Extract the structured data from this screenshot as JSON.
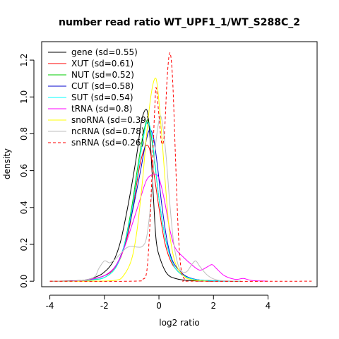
{
  "chart_data": {
    "type": "line",
    "title": "number read ratio WT_UPF1_1/WT_S288C_2",
    "xlabel": "log2 ratio",
    "ylabel": "density",
    "xlim": [
      -4.3,
      5.8
    ],
    "ylim": [
      -0.03,
      1.3
    ],
    "xticks": [
      -4,
      -2,
      0,
      2,
      4
    ],
    "xtick_labels": [
      "-4",
      "-2",
      "0",
      "2",
      "4"
    ],
    "yticks": [
      0,
      0.2,
      0.4,
      0.6,
      0.8,
      1.0,
      1.2
    ],
    "ytick_labels": [
      "0.0",
      "0.2",
      "0.4",
      "0.6",
      "0.8",
      "1.0",
      "1.2"
    ],
    "grid": false,
    "legend_position": "top-left",
    "series": [
      {
        "name": "gene (sd=0.55)",
        "color": "#000000",
        "dash": "solid",
        "points": [
          [
            -4,
            0
          ],
          [
            -3,
            0.003
          ],
          [
            -2.6,
            0.01
          ],
          [
            -2.2,
            0.03
          ],
          [
            -2.0,
            0.05
          ],
          [
            -1.8,
            0.08
          ],
          [
            -1.6,
            0.13
          ],
          [
            -1.4,
            0.22
          ],
          [
            -1.2,
            0.36
          ],
          [
            -1.0,
            0.52
          ],
          [
            -0.8,
            0.7
          ],
          [
            -0.65,
            0.86
          ],
          [
            -0.5,
            0.93
          ],
          [
            -0.4,
            0.9
          ],
          [
            -0.3,
            0.72
          ],
          [
            -0.2,
            0.45
          ],
          [
            -0.1,
            0.22
          ],
          [
            0.05,
            0.12
          ],
          [
            0.3,
            0.04
          ],
          [
            0.6,
            0.015
          ],
          [
            1.0,
            0.005
          ],
          [
            1.5,
            0.001
          ],
          [
            3,
            0
          ]
        ]
      },
      {
        "name": "XUT (sd=0.61)",
        "color": "#ff0000",
        "dash": "solid",
        "points": [
          [
            -4,
            0
          ],
          [
            -3,
            0.002
          ],
          [
            -2.5,
            0.01
          ],
          [
            -2.0,
            0.03
          ],
          [
            -1.7,
            0.06
          ],
          [
            -1.4,
            0.13
          ],
          [
            -1.1,
            0.28
          ],
          [
            -0.9,
            0.45
          ],
          [
            -0.7,
            0.63
          ],
          [
            -0.5,
            0.73
          ],
          [
            -0.35,
            0.72
          ],
          [
            -0.2,
            0.6
          ],
          [
            0,
            0.4
          ],
          [
            0.2,
            0.22
          ],
          [
            0.4,
            0.12
          ],
          [
            0.6,
            0.07
          ],
          [
            0.9,
            0.03
          ],
          [
            1.3,
            0.01
          ],
          [
            2,
            0.003
          ],
          [
            3,
            0
          ]
        ]
      },
      {
        "name": "NUT (sd=0.52)",
        "color": "#00cd00",
        "dash": "solid",
        "points": [
          [
            -4,
            0
          ],
          [
            -3,
            0.001
          ],
          [
            -2.4,
            0.008
          ],
          [
            -2.0,
            0.02
          ],
          [
            -1.6,
            0.07
          ],
          [
            -1.3,
            0.18
          ],
          [
            -1.0,
            0.4
          ],
          [
            -0.8,
            0.6
          ],
          [
            -0.6,
            0.78
          ],
          [
            -0.45,
            0.87
          ],
          [
            -0.35,
            0.85
          ],
          [
            -0.2,
            0.7
          ],
          [
            0,
            0.45
          ],
          [
            0.2,
            0.26
          ],
          [
            0.4,
            0.14
          ],
          [
            0.6,
            0.07
          ],
          [
            0.9,
            0.03
          ],
          [
            1.3,
            0.01
          ],
          [
            2,
            0.002
          ],
          [
            3,
            0
          ]
        ]
      },
      {
        "name": "CUT (sd=0.58)",
        "color": "#0000cd",
        "dash": "solid",
        "points": [
          [
            -4,
            0
          ],
          [
            -3,
            0.002
          ],
          [
            -2.5,
            0.01
          ],
          [
            -2.0,
            0.03
          ],
          [
            -1.6,
            0.08
          ],
          [
            -1.3,
            0.18
          ],
          [
            -1.0,
            0.36
          ],
          [
            -0.7,
            0.58
          ],
          [
            -0.5,
            0.74
          ],
          [
            -0.35,
            0.82
          ],
          [
            -0.2,
            0.78
          ],
          [
            -0.05,
            0.62
          ],
          [
            0.1,
            0.42
          ],
          [
            0.3,
            0.22
          ],
          [
            0.5,
            0.11
          ],
          [
            0.8,
            0.05
          ],
          [
            1.1,
            0.02
          ],
          [
            1.6,
            0.005
          ],
          [
            2.5,
            0
          ]
        ]
      },
      {
        "name": "SUT (sd=0.54)",
        "color": "#00ffff",
        "dash": "solid",
        "points": [
          [
            -4,
            0
          ],
          [
            -3,
            0.001
          ],
          [
            -2.4,
            0.01
          ],
          [
            -2.0,
            0.02
          ],
          [
            -1.6,
            0.07
          ],
          [
            -1.3,
            0.18
          ],
          [
            -1.0,
            0.38
          ],
          [
            -0.8,
            0.57
          ],
          [
            -0.6,
            0.75
          ],
          [
            -0.45,
            0.86
          ],
          [
            -0.3,
            0.82
          ],
          [
            -0.15,
            0.65
          ],
          [
            0,
            0.45
          ],
          [
            0.2,
            0.26
          ],
          [
            0.4,
            0.14
          ],
          [
            0.6,
            0.07
          ],
          [
            0.9,
            0.03
          ],
          [
            1.3,
            0.01
          ],
          [
            2,
            0.002
          ],
          [
            3,
            0
          ]
        ]
      },
      {
        "name": "tRNA (sd=0.8)",
        "color": "#ff00ff",
        "dash": "solid",
        "points": [
          [
            -4,
            0
          ],
          [
            -3,
            0.002
          ],
          [
            -2.5,
            0.01
          ],
          [
            -2.0,
            0.03
          ],
          [
            -1.6,
            0.08
          ],
          [
            -1.3,
            0.17
          ],
          [
            -1.0,
            0.3
          ],
          [
            -0.7,
            0.44
          ],
          [
            -0.45,
            0.55
          ],
          [
            -0.2,
            0.58
          ],
          [
            0,
            0.56
          ],
          [
            0.2,
            0.44
          ],
          [
            0.4,
            0.28
          ],
          [
            0.6,
            0.18
          ],
          [
            0.9,
            0.13
          ],
          [
            1.2,
            0.09
          ],
          [
            1.5,
            0.06
          ],
          [
            1.8,
            0.08
          ],
          [
            1.95,
            0.09
          ],
          [
            2.1,
            0.07
          ],
          [
            2.4,
            0.03
          ],
          [
            2.8,
            0.01
          ],
          [
            3.1,
            0.015
          ],
          [
            3.4,
            0.004
          ],
          [
            4,
            0
          ]
        ]
      },
      {
        "name": "snoRNA (sd=0.39)",
        "color": "#ffff00",
        "dash": "solid",
        "points": [
          [
            -4,
            0
          ],
          [
            -2.5,
            0
          ],
          [
            -1.6,
            0.005
          ],
          [
            -1.3,
            0.03
          ],
          [
            -1.0,
            0.12
          ],
          [
            -0.8,
            0.28
          ],
          [
            -0.6,
            0.55
          ],
          [
            -0.45,
            0.8
          ],
          [
            -0.3,
            1.0
          ],
          [
            -0.15,
            1.1
          ],
          [
            -0.05,
            1.05
          ],
          [
            0.1,
            0.8
          ],
          [
            0.25,
            0.5
          ],
          [
            0.4,
            0.25
          ],
          [
            0.6,
            0.1
          ],
          [
            0.9,
            0.03
          ],
          [
            1.2,
            0.008
          ],
          [
            1.8,
            0
          ]
        ]
      },
      {
        "name": "ncRNA (sd=0.78)",
        "color": "#bebebe",
        "dash": "solid",
        "points": [
          [
            -4,
            0
          ],
          [
            -3,
            0.002
          ],
          [
            -2.4,
            0.02
          ],
          [
            -2.2,
            0.07
          ],
          [
            -2.0,
            0.11
          ],
          [
            -1.8,
            0.1
          ],
          [
            -1.6,
            0.12
          ],
          [
            -1.4,
            0.15
          ],
          [
            -1.2,
            0.18
          ],
          [
            -1.0,
            0.19
          ],
          [
            -0.8,
            0.185
          ],
          [
            -0.6,
            0.19
          ],
          [
            -0.45,
            0.24
          ],
          [
            -0.3,
            0.42
          ],
          [
            -0.15,
            0.7
          ],
          [
            0.0,
            0.87
          ],
          [
            0.1,
            0.88
          ],
          [
            0.25,
            0.7
          ],
          [
            0.4,
            0.42
          ],
          [
            0.55,
            0.2
          ],
          [
            0.75,
            0.07
          ],
          [
            1.0,
            0.05
          ],
          [
            1.2,
            0.09
          ],
          [
            1.35,
            0.11
          ],
          [
            1.5,
            0.08
          ],
          [
            1.8,
            0.03
          ],
          [
            2.2,
            0.005
          ],
          [
            3,
            0
          ]
        ]
      },
      {
        "name": "snRNA (sd=0.26)",
        "color": "#ff0000",
        "dash": "dashed",
        "points": [
          [
            -4,
            0
          ],
          [
            -1.0,
            0
          ],
          [
            -0.6,
            0.01
          ],
          [
            -0.45,
            0.05
          ],
          [
            -0.35,
            0.25
          ],
          [
            -0.25,
            0.6
          ],
          [
            -0.15,
            0.95
          ],
          [
            -0.1,
            1.05
          ],
          [
            0.0,
            0.9
          ],
          [
            0.1,
            0.75
          ],
          [
            0.2,
            0.8
          ],
          [
            0.3,
            1.1
          ],
          [
            0.4,
            1.24
          ],
          [
            0.5,
            1.1
          ],
          [
            0.6,
            0.7
          ],
          [
            0.7,
            0.3
          ],
          [
            0.8,
            0.08
          ],
          [
            0.95,
            0.01
          ],
          [
            1.3,
            0
          ],
          [
            5.6,
            0
          ]
        ]
      }
    ]
  }
}
